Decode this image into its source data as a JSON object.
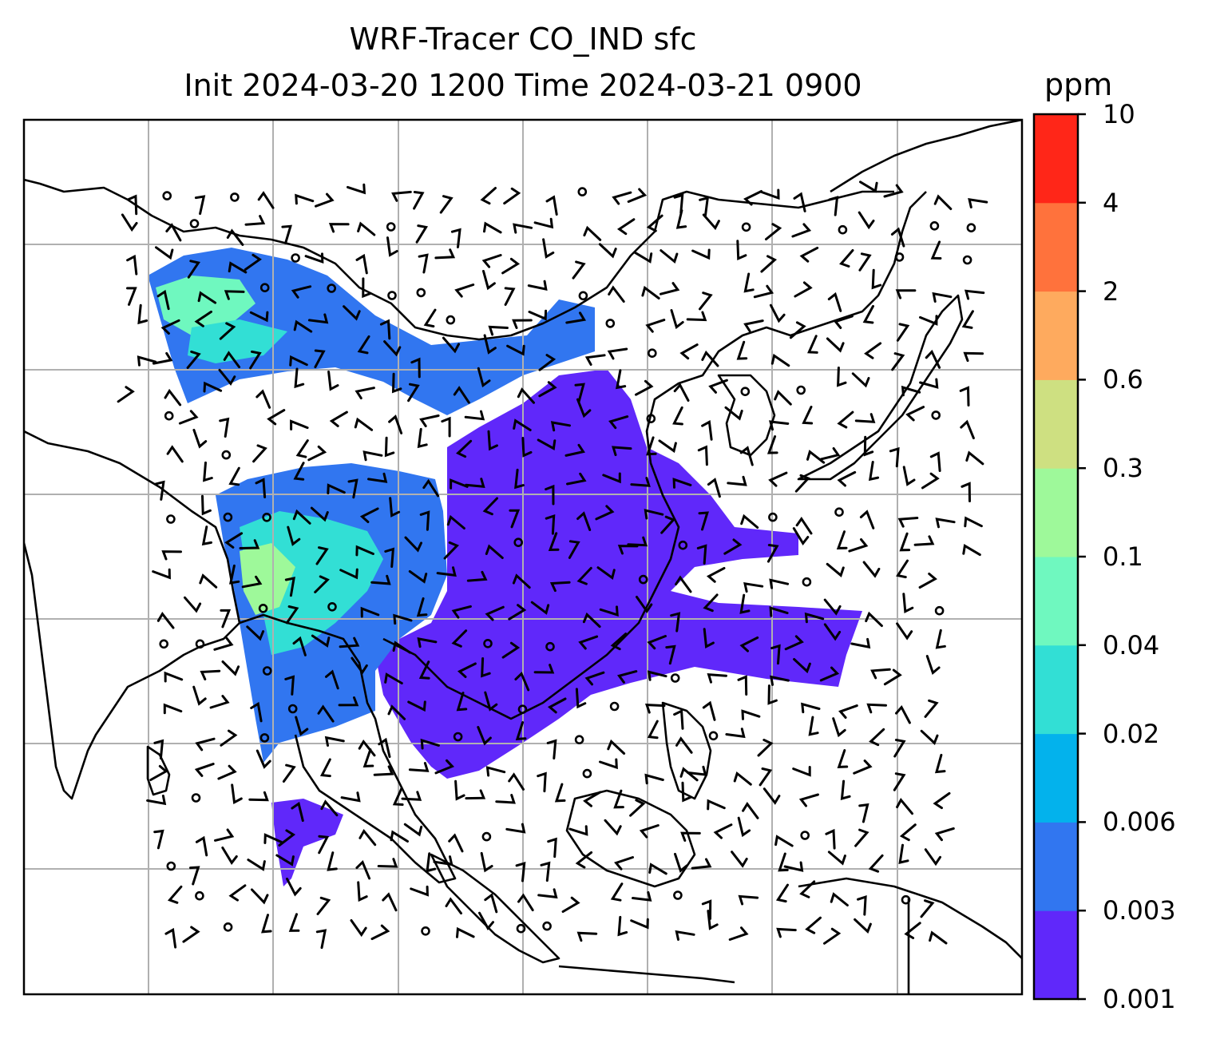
{
  "title": {
    "line1": "WRF-Tracer CO_IND sfc",
    "line2": "Init 2024-03-20 1200 Time 2024-03-21 0900"
  },
  "colorbar": {
    "unit": "ppm",
    "levels": [
      "0.001",
      "0.003",
      "0.006",
      "0.02",
      "0.04",
      "0.1",
      "0.3",
      "0.6",
      "2",
      "4",
      "10"
    ],
    "colors": [
      "#6028fa",
      "#3176f0",
      "#03b2ec",
      "#32dfd5",
      "#6ff8bf",
      "#9ef99a",
      "#cee081",
      "#feaa5e",
      "#ff723c",
      "#ff2618"
    ]
  },
  "map": {
    "gridlines": true,
    "grid_color": "#b0b0b0",
    "coastline_color": "#000000",
    "barb_color": "#000000",
    "variable": "CO_IND",
    "level": "sfc"
  }
}
